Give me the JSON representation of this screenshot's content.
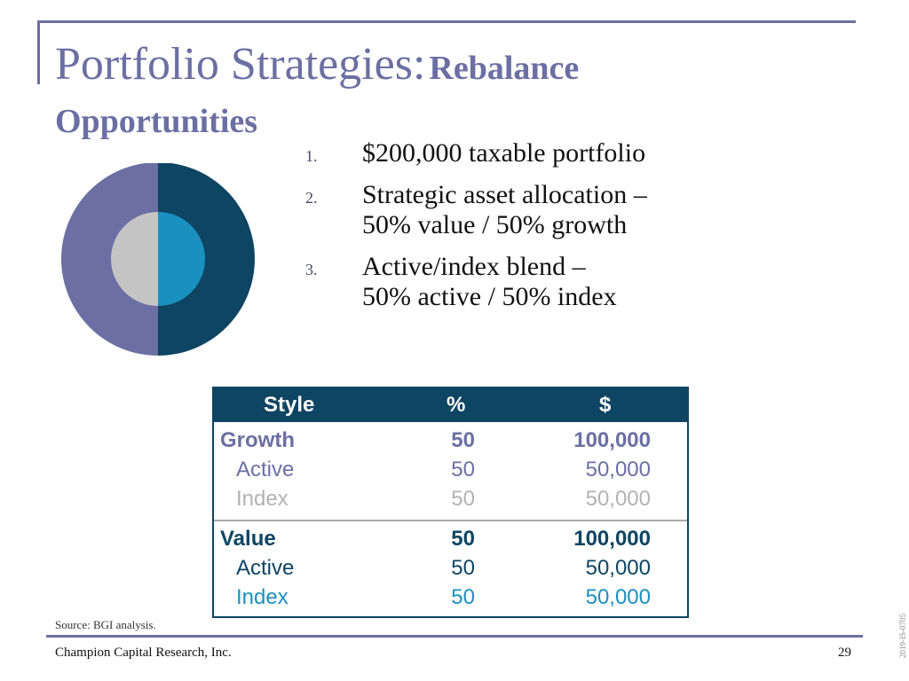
{
  "title": {
    "main": "Portfolio Strategies:",
    "bold_part": "Rebalance",
    "line2": "Opportunities"
  },
  "bullets": [
    {
      "num": "1.",
      "lines": [
        "$200,000 taxable portfolio"
      ]
    },
    {
      "num": "2.",
      "lines": [
        "Strategic asset allocation –",
        "50% value / 50% growth"
      ]
    },
    {
      "num": "3.",
      "lines": [
        "Active/index blend –",
        "50% active / 50% index"
      ]
    }
  ],
  "table": {
    "headers": [
      "Style",
      "%",
      "$"
    ],
    "groups": [
      {
        "name": "Growth",
        "pct": "50",
        "amount": "100,000",
        "color": "#6b6fa3",
        "rows": [
          {
            "name": "Active",
            "pct": "50",
            "amount": "50,000",
            "color": "#6b6fa3"
          },
          {
            "name": "Index",
            "pct": "50",
            "amount": "50,000",
            "color": "#b3b3b3"
          }
        ]
      },
      {
        "name": "Value",
        "pct": "50",
        "amount": "100,000",
        "color": "#0e4563",
        "rows": [
          {
            "name": "Active",
            "pct": "50",
            "amount": "50,000",
            "color": "#0e4563"
          },
          {
            "name": "Index",
            "pct": "50",
            "amount": "50,000",
            "color": "#1a90bf"
          }
        ]
      }
    ]
  },
  "chart_data": {
    "type": "pie",
    "rings": [
      {
        "ring": "outer",
        "slices": [
          {
            "value": 50,
            "color": "#0e4563"
          },
          {
            "value": 50,
            "color": "#6b6fa3"
          }
        ]
      },
      {
        "ring": "inner",
        "slices": [
          {
            "value": 50,
            "color": "#1a90bf"
          },
          {
            "value": 50,
            "color": "#c4c4c4"
          }
        ]
      }
    ]
  },
  "source": "Source: BGI analysis.",
  "footer": {
    "company": "Champion Capital Research, Inc.",
    "page": "29",
    "code": "2019-IS-0705"
  }
}
